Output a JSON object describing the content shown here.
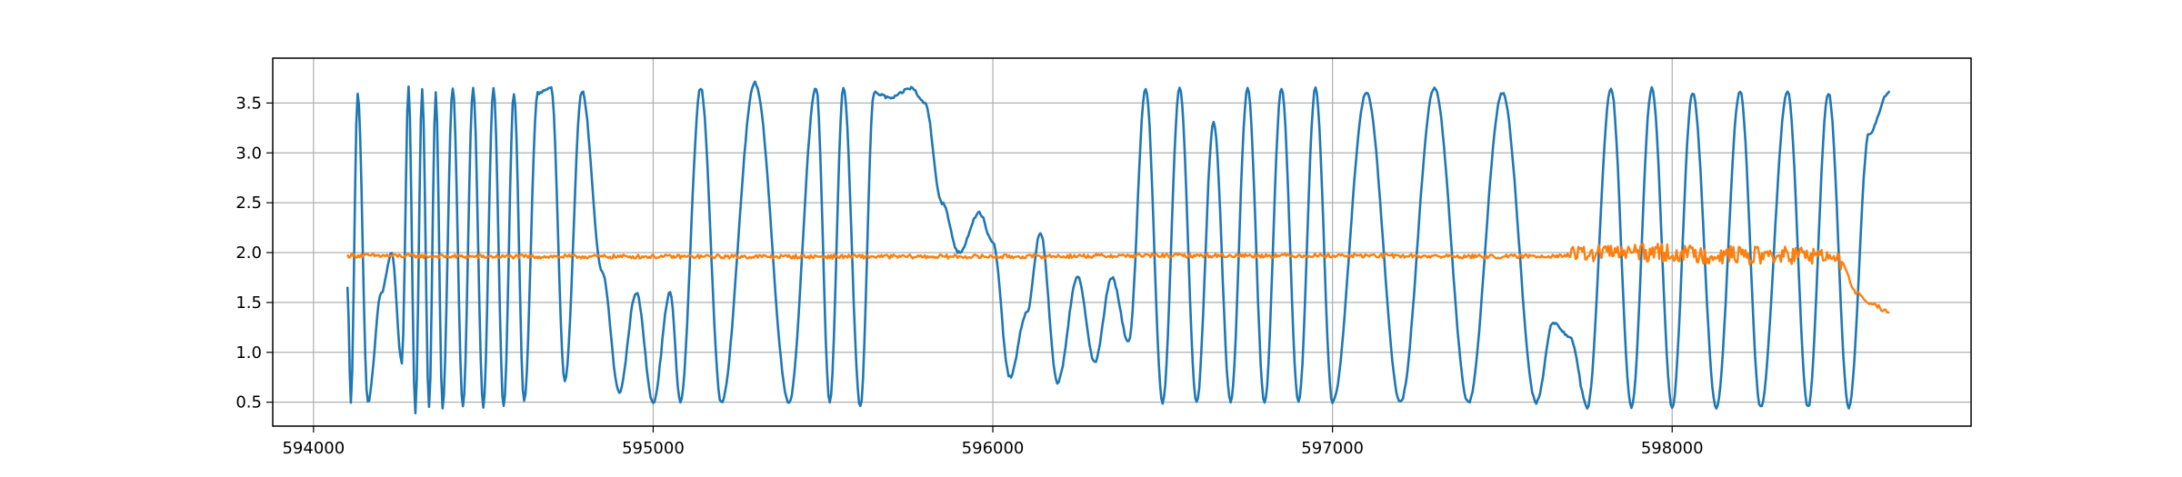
{
  "chart_data": {
    "type": "line",
    "title": "",
    "xlabel": "",
    "ylabel": "",
    "xlim": [
      593880,
      598880
    ],
    "ylim": [
      0.26,
      3.95
    ],
    "grid": true,
    "x_ticks": [
      594000,
      595000,
      596000,
      597000,
      598000
    ],
    "x_tick_labels": [
      "594000",
      "595000",
      "596000",
      "597000",
      "598000"
    ],
    "y_ticks": [
      0.5,
      1.0,
      1.5,
      2.0,
      2.5,
      3.0,
      3.5
    ],
    "y_tick_labels": [
      "0.5",
      "1.0",
      "1.5",
      "2.0",
      "2.5",
      "3.0",
      "3.5"
    ],
    "colors": {
      "series1": "#1f77b4",
      "series2": "#ff7f0e",
      "grid": "#b0b0b0"
    },
    "series": [
      {
        "color": "#1f77b4",
        "x_range": [
          594100,
          598640
        ],
        "description_points": [
          [
            594100,
            1.65
          ],
          [
            594110,
            0.5
          ],
          [
            594130,
            3.6
          ],
          [
            594160,
            0.5
          ],
          [
            594200,
            1.6
          ],
          [
            594230,
            2.0
          ],
          [
            594260,
            0.9
          ],
          [
            594280,
            3.65
          ],
          [
            594300,
            0.4
          ],
          [
            594320,
            3.65
          ],
          [
            594340,
            0.45
          ],
          [
            594360,
            3.6
          ],
          [
            594380,
            0.45
          ],
          [
            594410,
            3.65
          ],
          [
            594440,
            0.45
          ],
          [
            594470,
            3.65
          ],
          [
            594500,
            0.45
          ],
          [
            594530,
            3.65
          ],
          [
            594560,
            0.45
          ],
          [
            594590,
            3.6
          ],
          [
            594620,
            0.5
          ],
          [
            594660,
            3.6
          ],
          [
            594700,
            3.65
          ],
          [
            594740,
            0.7
          ],
          [
            594790,
            3.62
          ],
          [
            594850,
            1.8
          ],
          [
            594900,
            0.6
          ],
          [
            594950,
            1.6
          ],
          [
            595000,
            0.5
          ],
          [
            595050,
            1.6
          ],
          [
            595080,
            0.5
          ],
          [
            595140,
            3.65
          ],
          [
            595200,
            0.5
          ],
          [
            595300,
            3.7
          ],
          [
            595400,
            0.5
          ],
          [
            595480,
            3.65
          ],
          [
            595520,
            0.5
          ],
          [
            595560,
            3.65
          ],
          [
            595610,
            0.45
          ],
          [
            595650,
            3.6
          ],
          [
            595700,
            3.55
          ],
          [
            595760,
            3.65
          ],
          [
            595800,
            3.5
          ],
          [
            595850,
            2.5
          ],
          [
            595900,
            2.0
          ],
          [
            595960,
            2.4
          ],
          [
            596000,
            2.1
          ],
          [
            596050,
            0.75
          ],
          [
            596100,
            1.4
          ],
          [
            596140,
            2.2
          ],
          [
            596190,
            0.7
          ],
          [
            596250,
            1.75
          ],
          [
            596300,
            0.9
          ],
          [
            596350,
            1.75
          ],
          [
            596400,
            1.1
          ],
          [
            596450,
            3.65
          ],
          [
            596500,
            0.5
          ],
          [
            596550,
            3.65
          ],
          [
            596600,
            0.5
          ],
          [
            596650,
            3.3
          ],
          [
            596700,
            0.5
          ],
          [
            596750,
            3.65
          ],
          [
            596800,
            0.5
          ],
          [
            596850,
            3.65
          ],
          [
            596900,
            0.5
          ],
          [
            596950,
            3.65
          ],
          [
            597000,
            0.5
          ],
          [
            597100,
            3.6
          ],
          [
            597200,
            0.5
          ],
          [
            597300,
            3.65
          ],
          [
            597400,
            0.5
          ],
          [
            597500,
            3.6
          ],
          [
            597600,
            0.5
          ],
          [
            597650,
            1.3
          ],
          [
            597700,
            1.15
          ],
          [
            597750,
            0.45
          ],
          [
            597820,
            3.65
          ],
          [
            597880,
            0.45
          ],
          [
            597940,
            3.65
          ],
          [
            598000,
            0.45
          ],
          [
            598060,
            3.6
          ],
          [
            598130,
            0.45
          ],
          [
            598200,
            3.62
          ],
          [
            598260,
            0.45
          ],
          [
            598340,
            3.62
          ],
          [
            598400,
            0.45
          ],
          [
            598460,
            3.6
          ],
          [
            598520,
            0.45
          ],
          [
            598580,
            3.2
          ],
          [
            598640,
            3.62
          ]
        ]
      },
      {
        "color": "#ff7f0e",
        "x_range": [
          594100,
          598640
        ],
        "description_points": [
          [
            594100,
            1.97
          ],
          [
            594500,
            1.96
          ],
          [
            595000,
            1.96
          ],
          [
            595500,
            1.96
          ],
          [
            596000,
            1.96
          ],
          [
            596500,
            1.97
          ],
          [
            597000,
            1.97
          ],
          [
            597500,
            1.96
          ],
          [
            597700,
            1.97
          ],
          [
            597800,
            2.0
          ],
          [
            597950,
            2.0
          ],
          [
            598100,
            1.98
          ],
          [
            598300,
            1.97
          ],
          [
            598440,
            1.97
          ],
          [
            598500,
            1.9
          ],
          [
            598540,
            1.6
          ],
          [
            598580,
            1.5
          ],
          [
            598640,
            1.4
          ]
        ]
      }
    ]
  }
}
